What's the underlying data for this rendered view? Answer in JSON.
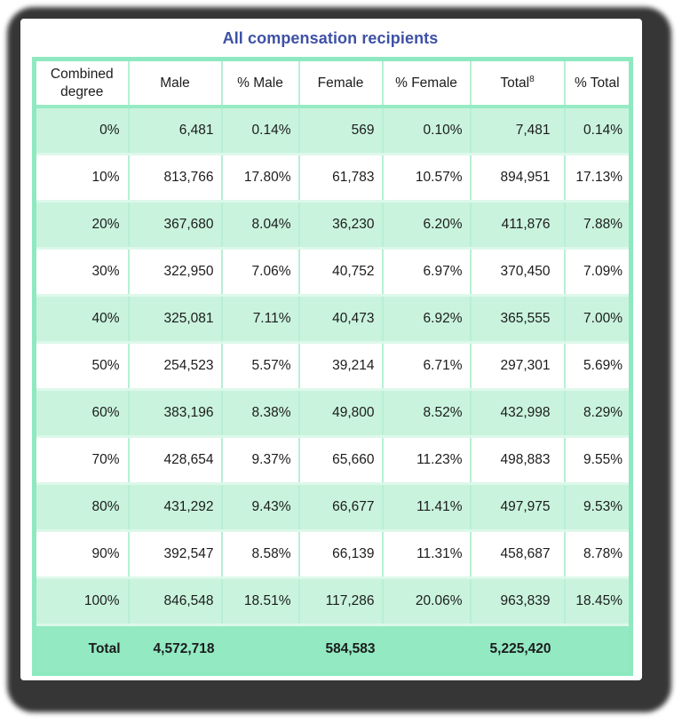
{
  "title": "All compensation recipients",
  "colors": {
    "shadow": "#363636",
    "green_border": "#8fe9c0",
    "green_row": "#c9f3dd",
    "green_total": "#92e9c2",
    "grid_vertical": "#b7efd5",
    "grid_horizontal": "#ddf8eb",
    "header_underline": "#96ebc4",
    "title_blue": "#3e51a5",
    "text_ink": "#1c1c1c"
  },
  "table": {
    "headers": [
      {
        "label": "Combined degree",
        "sup": ""
      },
      {
        "label": "Male",
        "sup": ""
      },
      {
        "label": "% Male",
        "sup": ""
      },
      {
        "label": "Female",
        "sup": ""
      },
      {
        "label": "% Female",
        "sup": ""
      },
      {
        "label": "Total",
        "sup": "8"
      },
      {
        "label": "% Total",
        "sup": ""
      }
    ],
    "rows": [
      [
        "0%",
        "6,481",
        "0.14%",
        "569",
        "0.10%",
        "7,481",
        "0.14%"
      ],
      [
        "10%",
        "813,766",
        "17.80%",
        "61,783",
        "10.57%",
        "894,951",
        "17.13%"
      ],
      [
        "20%",
        "367,680",
        "8.04%",
        "36,230",
        "6.20%",
        "411,876",
        "7.88%"
      ],
      [
        "30%",
        "322,950",
        "7.06%",
        "40,752",
        "6.97%",
        "370,450",
        "7.09%"
      ],
      [
        "40%",
        "325,081",
        "7.11%",
        "40,473",
        "6.92%",
        "365,555",
        "7.00%"
      ],
      [
        "50%",
        "254,523",
        "5.57%",
        "39,214",
        "6.71%",
        "297,301",
        "5.69%"
      ],
      [
        "60%",
        "383,196",
        "8.38%",
        "49,800",
        "8.52%",
        "432,998",
        "8.29%"
      ],
      [
        "70%",
        "428,654",
        "9.37%",
        "65,660",
        "11.23%",
        "498,883",
        "9.55%"
      ],
      [
        "80%",
        "431,292",
        "9.43%",
        "66,677",
        "11.41%",
        "497,975",
        "9.53%"
      ],
      [
        "90%",
        "392,547",
        "8.58%",
        "66,139",
        "11.31%",
        "458,687",
        "8.78%"
      ],
      [
        "100%",
        "846,548",
        "18.51%",
        "117,286",
        "20.06%",
        "963,839",
        "18.45%"
      ]
    ],
    "total_row": [
      "Total",
      "4,572,718",
      "",
      "584,583",
      "",
      "5,225,420",
      ""
    ]
  },
  "chart_data": {
    "type": "table",
    "title": "All compensation recipients",
    "columns": [
      "Combined degree",
      "Male",
      "% Male",
      "Female",
      "% Female",
      "Total8",
      "% Total"
    ],
    "rows": [
      [
        "0%",
        "6,481",
        "0.14%",
        "569",
        "0.10%",
        "7,481",
        "0.14%"
      ],
      [
        "10%",
        "813,766",
        "17.80%",
        "61,783",
        "10.57%",
        "894,951",
        "17.13%"
      ],
      [
        "20%",
        "367,680",
        "8.04%",
        "36,230",
        "6.20%",
        "411,876",
        "7.88%"
      ],
      [
        "30%",
        "322,950",
        "7.06%",
        "40,752",
        "6.97%",
        "370,450",
        "7.09%"
      ],
      [
        "40%",
        "325,081",
        "7.11%",
        "40,473",
        "6.92%",
        "365,555",
        "7.00%"
      ],
      [
        "50%",
        "254,523",
        "5.57%",
        "39,214",
        "6.71%",
        "297,301",
        "5.69%"
      ],
      [
        "60%",
        "383,196",
        "8.38%",
        "49,800",
        "8.52%",
        "432,998",
        "8.29%"
      ],
      [
        "70%",
        "428,654",
        "9.37%",
        "65,660",
        "11.23%",
        "498,883",
        "9.55%"
      ],
      [
        "80%",
        "431,292",
        "9.43%",
        "66,677",
        "11.41%",
        "497,975",
        "9.53%"
      ],
      [
        "90%",
        "392,547",
        "8.58%",
        "66,139",
        "11.31%",
        "458,687",
        "8.78%"
      ],
      [
        "100%",
        "846,548",
        "18.51%",
        "117,286",
        "20.06%",
        "963,839",
        "18.45%"
      ]
    ],
    "totals": {
      "label": "Total",
      "male": "4,572,718",
      "female": "584,583",
      "total": "5,225,420"
    }
  }
}
